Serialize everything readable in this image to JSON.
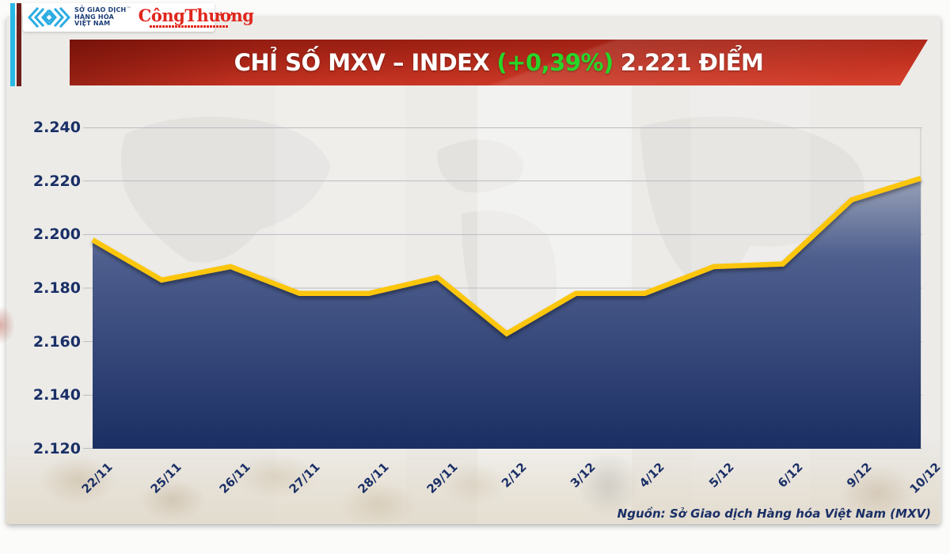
{
  "header": {
    "logo": {
      "org_name_lines": [
        "SỞ GIAO DỊCH",
        "HÀNG HÓA",
        "VIỆT NAM"
      ],
      "trademark": "™",
      "brand_name": "CôngThương"
    },
    "banner": {
      "title": "CHỈ SỐ MXV – INDEX",
      "change_percent": "(+0,39%)",
      "value_text": "2.221 ĐIỂM"
    }
  },
  "chart_data": {
    "type": "area",
    "title": "CHỈ SỐ MXV – INDEX (+0,39%) 2.221 ĐIỂM",
    "x_labels": [
      "22/11",
      "25/11",
      "26/11",
      "27/11",
      "28/11",
      "29/11",
      "2/12",
      "3/12",
      "4/12",
      "5/12",
      "6/12",
      "9/12",
      "10/12"
    ],
    "values": [
      2198,
      2183,
      2188,
      2178,
      2178,
      2184,
      2163,
      2178,
      2178,
      2188,
      2189,
      2213,
      2221
    ],
    "unit": "điểm",
    "ylim": [
      2120,
      2240
    ],
    "ytick_step": 20,
    "ytick_labels": [
      "2.240",
      "2.220",
      "2.200",
      "2.180",
      "2.160",
      "2.140",
      "2.120"
    ],
    "grid": true,
    "legend_position": "none",
    "line_color": "#FCC608",
    "area_gradient": [
      "#9BA4B9",
      "#4E5F8E",
      "#1B2E63"
    ],
    "grid_color": "#B9BCC2"
  },
  "footer": {
    "source": "Nguồn: Sở Giao dịch Hàng hóa Việt Nam (MXV)"
  },
  "colors": {
    "panel_bg": "#ECEBE8",
    "banner_red_dark": "#8C1A10",
    "banner_red_light": "#D8422E",
    "title_green": "#28D628",
    "text_navy": "#1A2F66",
    "stripe_cyan": "#29B8E5",
    "stripe_maroon": "#6D1F1A",
    "brand_red": "#E0261C",
    "logo_blue": "#2AACE2"
  }
}
